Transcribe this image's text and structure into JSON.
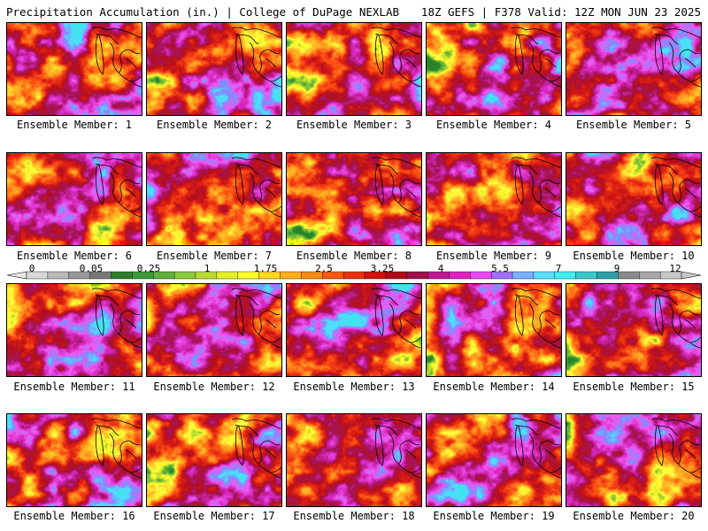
{
  "header": {
    "title_left": "Precipitation Accumulation (in.) | College of DuPage NEXLAB",
    "title_right": "18Z GEFS | F378 Valid: 12Z MON JUN 23 2025"
  },
  "legend": {
    "ticks": [
      "0",
      "0.05",
      "0.25",
      "1",
      "1.75",
      "2.5",
      "3.25",
      "4",
      "5.5",
      "7",
      "9",
      "12"
    ],
    "colors": [
      "#d8d8d8",
      "#b8b8b8",
      "#989898",
      "#787878",
      "#2e7d2e",
      "#3f9a3a",
      "#5fb040",
      "#8cc83c",
      "#b8dc32",
      "#e6f028",
      "#ffff2a",
      "#ffd822",
      "#ffb01a",
      "#ff8a14",
      "#f85a10",
      "#e8320e",
      "#d0140c",
      "#b00a18",
      "#a0104a",
      "#c01890",
      "#e020c0",
      "#e848f0",
      "#a070ff",
      "#7ab0ff",
      "#5ae0ff",
      "#40f0f0",
      "#38c8c8",
      "#30a0a8",
      "#8a8a8a",
      "#a8a8a8",
      "#c8c8c8"
    ]
  },
  "members": [
    {
      "label": "Ensemble Member: 1"
    },
    {
      "label": "Ensemble Member: 2"
    },
    {
      "label": "Ensemble Member: 3"
    },
    {
      "label": "Ensemble Member: 4"
    },
    {
      "label": "Ensemble Member: 5"
    },
    {
      "label": "Ensemble Member: 6"
    },
    {
      "label": "Ensemble Member: 7"
    },
    {
      "label": "Ensemble Member: 8"
    },
    {
      "label": "Ensemble Member: 9"
    },
    {
      "label": "Ensemble Member: 10"
    },
    {
      "label": "Ensemble Member: 11"
    },
    {
      "label": "Ensemble Member: 12"
    },
    {
      "label": "Ensemble Member: 13"
    },
    {
      "label": "Ensemble Member: 14"
    },
    {
      "label": "Ensemble Member: 15"
    },
    {
      "label": "Ensemble Member: 16"
    },
    {
      "label": "Ensemble Member: 17"
    },
    {
      "label": "Ensemble Member: 18"
    },
    {
      "label": "Ensemble Member: 19"
    },
    {
      "label": "Ensemble Member: 20"
    }
  ]
}
